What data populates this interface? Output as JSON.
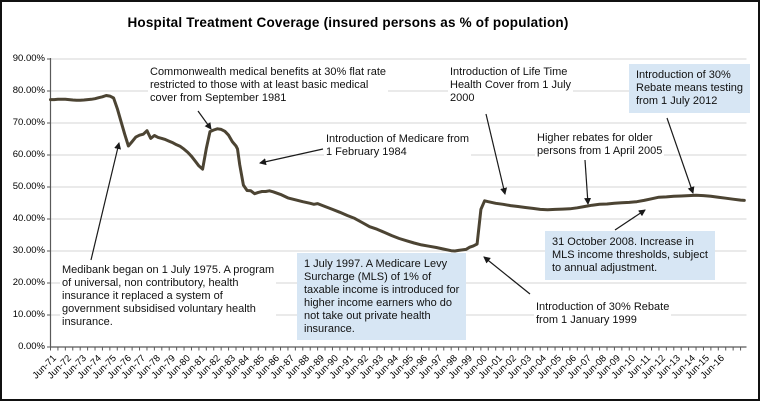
{
  "title": "Hospital Treatment Coverage (insured persons as % of population)",
  "chart_data": {
    "type": "line",
    "title": "Hospital Treatment Coverage (insured persons as % of population)",
    "xlabel": "",
    "ylabel": "",
    "ylim": [
      0,
      90
    ],
    "grid": true,
    "legend": "none",
    "y_tick_labels": [
      "90.00%",
      "80.00%",
      "70.00%",
      "60.00%",
      "50.00%",
      "40.00%",
      "30.00%",
      "20.00%",
      "10.00%",
      "0.00%"
    ],
    "x_tick_labels": [
      "Jun-71",
      "Jun-72",
      "Jun-73",
      "Jun-74",
      "Jun-75",
      "Jun-76",
      "Jun-77",
      "Jun-78",
      "Jun-79",
      "Jun-80",
      "Jun-81",
      "Jun-82",
      "Jun-83",
      "Jun-84",
      "Jun-85",
      "Jun-86",
      "Jun-87",
      "Jun-88",
      "Jun-89",
      "Jun-90",
      "Jun-91",
      "Jun-92",
      "Jun-93",
      "Jun-94",
      "Jun-95",
      "Jun-96",
      "Jun-97",
      "Jun-98",
      "Jun-99",
      "Jun-00",
      "Jun-01",
      "Jun-02",
      "Jun-03",
      "Jun-04",
      "Jun-05",
      "Jun-06",
      "Jun-07",
      "Jun-08",
      "Jun-09",
      "Jun-10",
      "Jun-11",
      "Jun-12",
      "Jun-13",
      "Jun-14",
      "Jun-15",
      "Jun-16"
    ],
    "series": [
      {
        "points": [
          [
            1971.5,
            77.3
          ],
          [
            1971.75,
            77.3
          ],
          [
            1972,
            77.4
          ],
          [
            1972.25,
            77.4
          ],
          [
            1972.5,
            77.4
          ],
          [
            1972.75,
            77.3
          ],
          [
            1973,
            77.2
          ],
          [
            1973.25,
            77.1
          ],
          [
            1973.5,
            77.1
          ],
          [
            1973.75,
            77.2
          ],
          [
            1974,
            77.3
          ],
          [
            1974.25,
            77.4
          ],
          [
            1974.5,
            77.6
          ],
          [
            1974.75,
            77.9
          ],
          [
            1975,
            78.2
          ],
          [
            1975.25,
            78.6
          ],
          [
            1975.5,
            78.4
          ],
          [
            1975.75,
            77.8
          ],
          [
            1976,
            74.5
          ],
          [
            1976.25,
            70.5
          ],
          [
            1976.5,
            66.5
          ],
          [
            1976.75,
            62.8
          ],
          [
            1977,
            64.2
          ],
          [
            1977.25,
            65.6
          ],
          [
            1977.5,
            66.2
          ],
          [
            1977.75,
            66.5
          ],
          [
            1978,
            67.6
          ],
          [
            1978.25,
            65.2
          ],
          [
            1978.5,
            66.1
          ],
          [
            1978.75,
            65.5
          ],
          [
            1979,
            65.2
          ],
          [
            1979.25,
            64.8
          ],
          [
            1979.5,
            64.3
          ],
          [
            1979.75,
            63.8
          ],
          [
            1980,
            63.2
          ],
          [
            1980.25,
            62.7
          ],
          [
            1980.5,
            61.8
          ],
          [
            1980.75,
            60.8
          ],
          [
            1981,
            59.6
          ],
          [
            1981.25,
            58.1
          ],
          [
            1981.5,
            56.6
          ],
          [
            1981.75,
            55.6
          ],
          [
            1982,
            62.0
          ],
          [
            1982.25,
            67.3
          ],
          [
            1982.5,
            67.8
          ],
          [
            1982.75,
            68.2
          ],
          [
            1983,
            68.0
          ],
          [
            1983.25,
            67.4
          ],
          [
            1983.5,
            66.2
          ],
          [
            1983.75,
            64.2
          ],
          [
            1984,
            62.8
          ],
          [
            1984.1,
            61.9
          ],
          [
            1984.25,
            57.0
          ],
          [
            1984.5,
            50.6
          ],
          [
            1984.75,
            48.9
          ],
          [
            1985,
            48.8
          ],
          [
            1985.25,
            47.9
          ],
          [
            1985.5,
            48.3
          ],
          [
            1985.75,
            48.6
          ],
          [
            1986,
            48.6
          ],
          [
            1986.25,
            48.8
          ],
          [
            1986.5,
            48.5
          ],
          [
            1987,
            47.7
          ],
          [
            1987.5,
            46.6
          ],
          [
            1988,
            46.0
          ],
          [
            1988.5,
            45.4
          ],
          [
            1989,
            44.9
          ],
          [
            1989.25,
            44.6
          ],
          [
            1989.5,
            44.8
          ],
          [
            1990,
            43.9
          ],
          [
            1990.5,
            43.0
          ],
          [
            1991,
            42.1
          ],
          [
            1991.5,
            41.1
          ],
          [
            1992,
            40.2
          ],
          [
            1992.5,
            38.9
          ],
          [
            1993,
            37.6
          ],
          [
            1993.5,
            36.8
          ],
          [
            1994,
            35.8
          ],
          [
            1994.5,
            34.8
          ],
          [
            1995,
            33.9
          ],
          [
            1995.5,
            33.2
          ],
          [
            1996,
            32.5
          ],
          [
            1996.5,
            31.9
          ],
          [
            1997,
            31.5
          ],
          [
            1997.5,
            31.1
          ],
          [
            1998,
            30.6
          ],
          [
            1998.5,
            30.1
          ],
          [
            1998.75,
            30.0
          ],
          [
            1999,
            30.2
          ],
          [
            1999.5,
            30.5
          ],
          [
            1999.75,
            31.2
          ],
          [
            2000,
            31.6
          ],
          [
            2000.25,
            32.2
          ],
          [
            2000.5,
            43.0
          ],
          [
            2000.75,
            45.7
          ],
          [
            2001,
            45.4
          ],
          [
            2001.5,
            44.9
          ],
          [
            2002,
            44.6
          ],
          [
            2002.5,
            44.2
          ],
          [
            2003,
            43.9
          ],
          [
            2003.5,
            43.6
          ],
          [
            2004,
            43.3
          ],
          [
            2004.5,
            43.0
          ],
          [
            2005,
            42.9
          ],
          [
            2005.5,
            43.0
          ],
          [
            2006,
            43.1
          ],
          [
            2006.5,
            43.2
          ],
          [
            2007,
            43.5
          ],
          [
            2007.5,
            43.9
          ],
          [
            2008,
            44.3
          ],
          [
            2008.5,
            44.6
          ],
          [
            2009,
            44.7
          ],
          [
            2009.5,
            44.9
          ],
          [
            2010,
            45.1
          ],
          [
            2010.5,
            45.2
          ],
          [
            2011,
            45.4
          ],
          [
            2011.5,
            45.8
          ],
          [
            2012,
            46.3
          ],
          [
            2012.5,
            46.8
          ],
          [
            2013,
            46.9
          ],
          [
            2013.5,
            47.1
          ],
          [
            2014,
            47.2
          ],
          [
            2014.5,
            47.3
          ],
          [
            2015,
            47.4
          ],
          [
            2015.5,
            47.3
          ],
          [
            2016,
            47.1
          ],
          [
            2016.5,
            46.8
          ],
          [
            2017,
            46.5
          ],
          [
            2017.5,
            46.2
          ],
          [
            2018,
            45.9
          ],
          [
            2018.25,
            45.8
          ]
        ]
      }
    ]
  },
  "annotations": {
    "commonwealth_1981": {
      "text": "Commonwealth medical benefits at 30% flat rate\nrestricted to those with at least basic medical\ncover from September 1981",
      "highlighted": false
    },
    "medicare_1984": {
      "text": "Introduction of Medicare from\n1 February 1984",
      "highlighted": false
    },
    "lifetime_2000": {
      "text": "Introduction of Life Time\nHealth Cover from 1 July\n2000",
      "highlighted": false
    },
    "means_testing_2012": {
      "text": "Introduction of 30%\nRebate means testing\nfrom 1 July 2012",
      "highlighted": true
    },
    "higher_rebates_2005": {
      "text": "Higher rebates for older\npersons from 1 April 2005",
      "highlighted": false
    },
    "mls_thresholds_2008": {
      "text": "31 October 2008. Increase in\nMLS income thresholds, subject\nto annual adjustment.",
      "highlighted": true
    },
    "rebate_1999": {
      "text": "Introduction of 30% Rebate\nfrom 1 January 1999",
      "highlighted": false
    },
    "medibank_1975": {
      "text": "Medibank began on 1 July 1975.  A program\nof universal, non contributory, health\ninsurance it replaced a system of\ngovernment subsidised voluntary health\ninsurance.",
      "highlighted": false
    },
    "mls_1997": {
      "text": "1 July 1997. A Medicare Levy\nSurcharge (MLS) of 1% of\ntaxable income is introduced for\nhigher income earners who do\nnot take out private health\ninsurance.",
      "highlighted": true
    }
  },
  "colors": {
    "line": "#4c4433",
    "grid": "#d6d6d6",
    "axis": "#595959",
    "highlight_box": "#d7e6f4",
    "arrow": "#1a1a1a",
    "text": "#000000",
    "frame_border": "#111111",
    "background": "#ffffff"
  }
}
